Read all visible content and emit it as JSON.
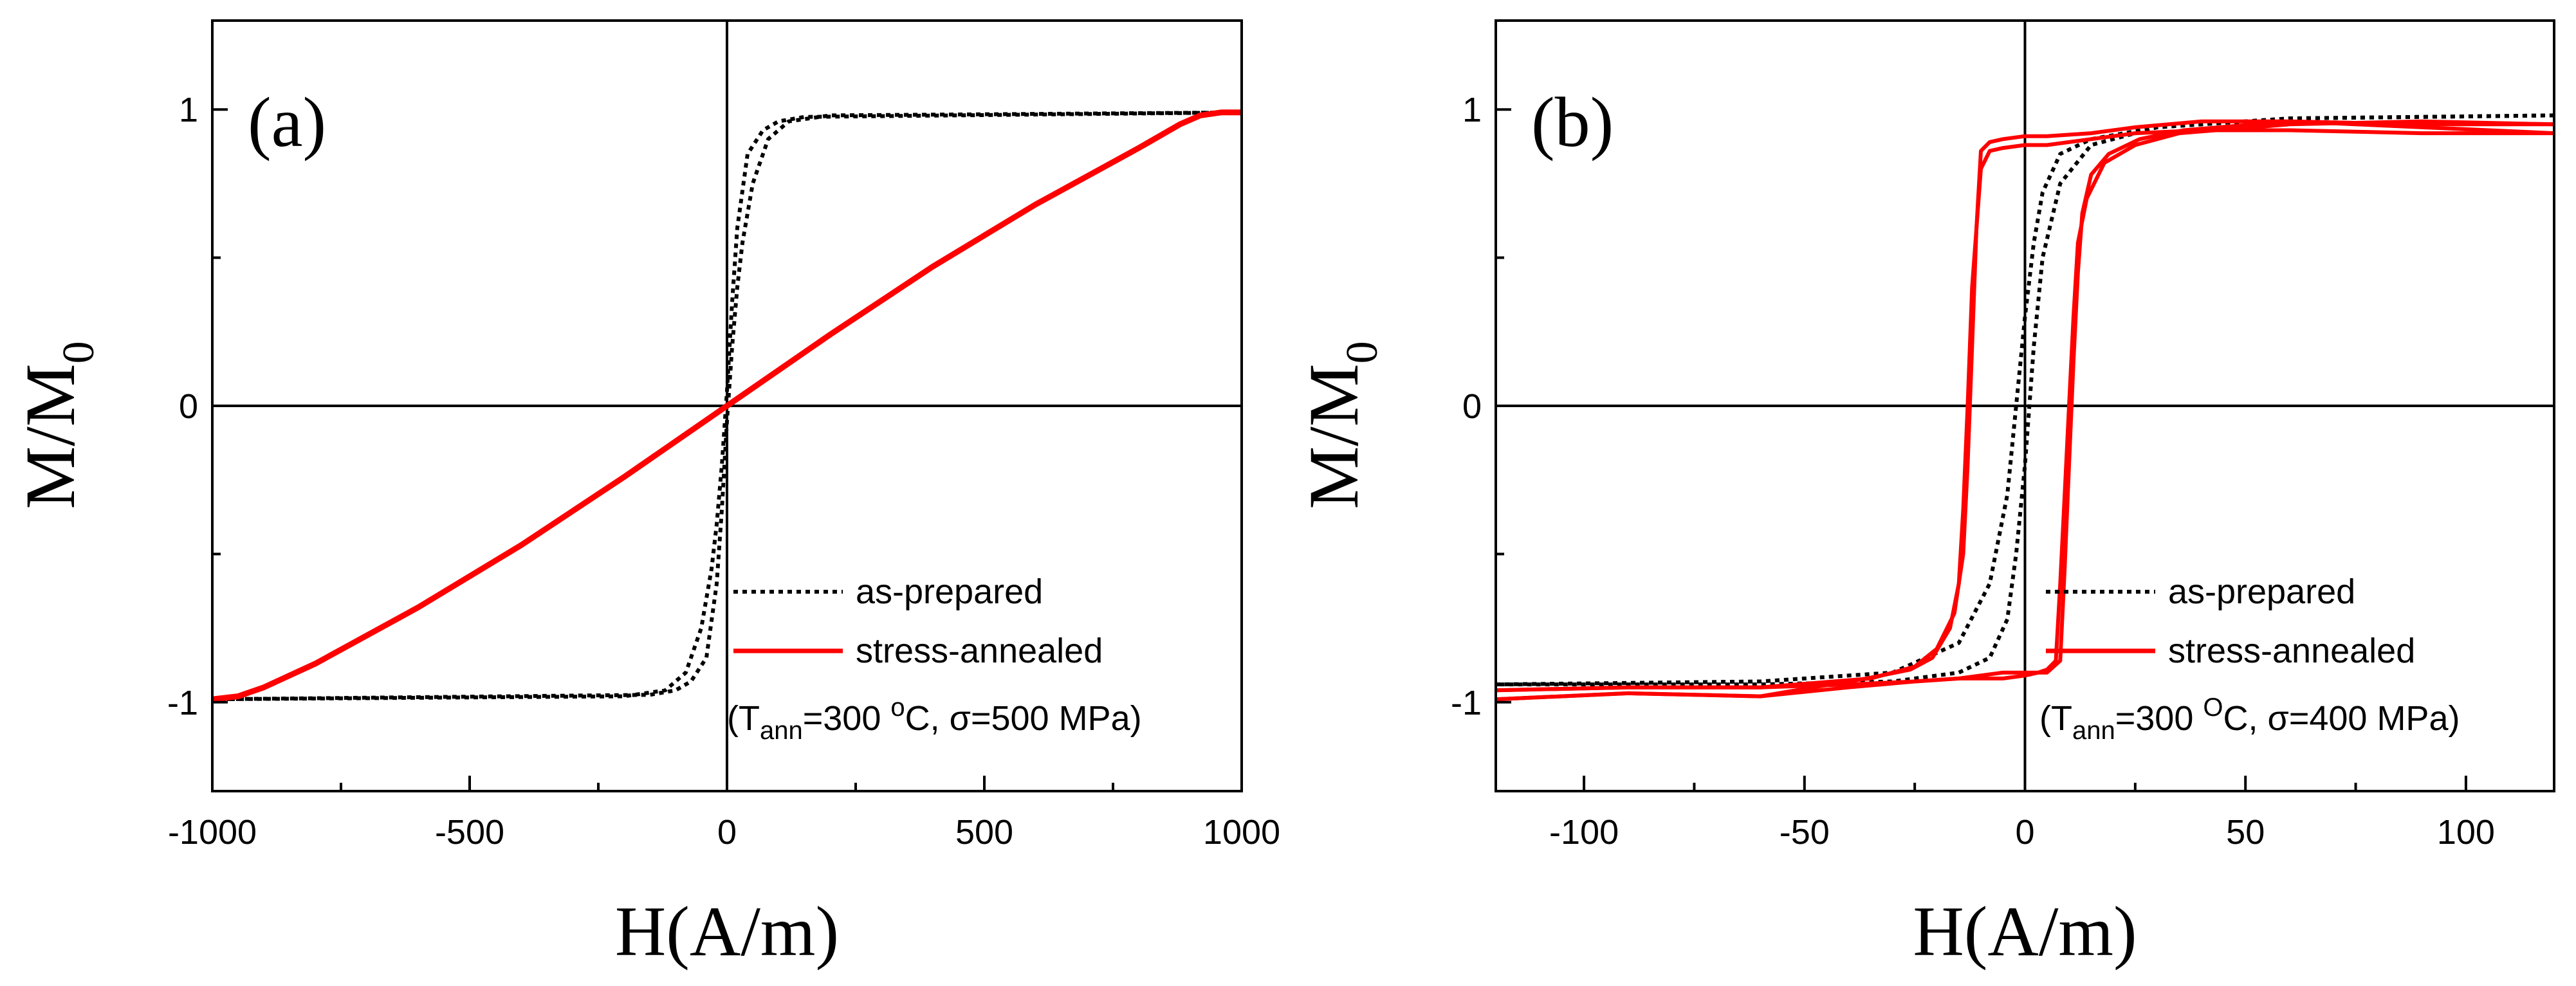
{
  "chart_data": [
    {
      "type": "line",
      "panel_label": "(a)",
      "xlabel": "H(A/m)",
      "ylabel": {
        "main": "M/M",
        "sub": "0"
      },
      "xlim": [
        -1000,
        1000
      ],
      "ylim": [
        -1.3,
        1.3
      ],
      "xticks": [
        -1000,
        -500,
        0,
        500,
        1000
      ],
      "xtick_labels": [
        "-1000",
        "-500",
        "0",
        "500",
        "1000"
      ],
      "yticks": [
        -1,
        0,
        1
      ],
      "ytick_labels": [
        "-1",
        "0",
        "1"
      ],
      "xminor": [
        -750,
        -250,
        250,
        750
      ],
      "yminor": [
        -0.5,
        0.5
      ],
      "zero_lines": true,
      "legend_position": "bottom-right",
      "annotation": {
        "open": "(T",
        "sub": "ann",
        "mid": "=300 ",
        "sup": "o",
        "close": "C, σ=500 MPa)"
      },
      "series": [
        {
          "name": "as-prepared",
          "style": "dotted",
          "color": "#000000",
          "branches": [
            {
              "x": [
                -1000,
                -200,
                -120,
                -80,
                -50,
                -30,
                -20,
                -10,
                0,
                10,
                20,
                40,
                70,
                100,
                150,
                1000
              ],
              "y": [
                -0.99,
                -0.98,
                -0.96,
                -0.9,
                -0.75,
                -0.55,
                -0.4,
                -0.2,
                0.05,
                0.35,
                0.6,
                0.85,
                0.93,
                0.96,
                0.975,
                0.99
              ]
            },
            {
              "x": [
                1000,
                200,
                120,
                80,
                50,
                30,
                20,
                10,
                0,
                -10,
                -20,
                -40,
                -70,
                -100,
                -150,
                -1000
              ],
              "y": [
                0.99,
                0.98,
                0.96,
                0.9,
                0.75,
                0.55,
                0.4,
                0.2,
                -0.05,
                -0.35,
                -0.6,
                -0.85,
                -0.93,
                -0.96,
                -0.975,
                -0.99
              ]
            }
          ]
        },
        {
          "name": "stress-annealed",
          "style": "solid",
          "color": "#ff0000",
          "branches": [
            {
              "x": [
                -1000,
                -950,
                -900,
                -800,
                -600,
                -400,
                -200,
                0,
                200,
                400,
                600,
                800,
                880,
                920,
                960,
                1000
              ],
              "y": [
                -0.99,
                -0.98,
                -0.95,
                -0.87,
                -0.68,
                -0.47,
                -0.24,
                0.0,
                0.24,
                0.47,
                0.68,
                0.87,
                0.95,
                0.98,
                0.99,
                0.99
              ]
            }
          ]
        }
      ]
    },
    {
      "type": "line",
      "panel_label": "(b)",
      "xlabel": "H(A/m)",
      "ylabel": {
        "main": "M/M",
        "sub": "0"
      },
      "xlim": [
        -120,
        120
      ],
      "ylim": [
        -1.3,
        1.3
      ],
      "xticks": [
        -100,
        -50,
        0,
        50,
        100
      ],
      "xtick_labels": [
        "-100",
        "-50",
        "0",
        "50",
        "100"
      ],
      "yticks": [
        -1,
        0,
        1
      ],
      "ytick_labels": [
        "-1",
        "0",
        "1"
      ],
      "xminor": [
        -75,
        -25,
        25,
        75
      ],
      "yminor": [
        -0.5,
        0.5
      ],
      "zero_lines": true,
      "legend_position": "bottom-right",
      "annotation": {
        "open": "(T",
        "sub": "ann",
        "mid": "=300 ",
        "sup": "O",
        "close": "C, σ=400 MPa)"
      },
      "series": [
        {
          "name": "as-prepared",
          "style": "dotted",
          "color": "#000000",
          "branches": [
            {
              "x": [
                -120,
                -60,
                -30,
                -15,
                -8,
                -4,
                -2,
                0,
                2,
                4,
                8,
                15,
                30,
                60,
                120
              ],
              "y": [
                -0.94,
                -0.93,
                -0.9,
                -0.8,
                -0.6,
                -0.3,
                0.0,
                0.3,
                0.55,
                0.72,
                0.85,
                0.9,
                0.94,
                0.97,
                0.98
              ]
            },
            {
              "x": [
                120,
                60,
                30,
                15,
                8,
                4,
                2,
                0,
                -2,
                -4,
                -8,
                -15,
                -30,
                -60,
                -120
              ],
              "y": [
                0.98,
                0.97,
                0.94,
                0.88,
                0.75,
                0.5,
                0.2,
                -0.2,
                -0.5,
                -0.72,
                -0.85,
                -0.9,
                -0.93,
                -0.94,
                -0.94
              ]
            }
          ]
        },
        {
          "name": "stress-annealed",
          "style": "solid",
          "color": "#ff0000",
          "branches": [
            {
              "x": [
                120,
                90,
                60,
                40,
                25,
                15,
                5,
                0,
                -5,
                -8,
                -10,
                -11,
                -12,
                -13,
                -14,
                -16,
                -20,
                -25,
                -35,
                -60,
                -90,
                -120
              ],
              "y": [
                0.95,
                0.95,
                0.96,
                0.96,
                0.94,
                0.92,
                0.91,
                0.91,
                0.9,
                0.89,
                0.86,
                0.6,
                0.2,
                -0.2,
                -0.5,
                -0.7,
                -0.82,
                -0.88,
                -0.92,
                -0.95,
                -0.95,
                -0.96
              ]
            },
            {
              "x": [
                -120,
                -90,
                -60,
                -40,
                -25,
                -15,
                -5,
                0,
                3,
                5,
                7,
                8,
                9,
                10,
                11,
                12,
                14,
                18,
                25,
                35,
                60,
                90,
                120
              ],
              "y": [
                -0.96,
                -0.95,
                -0.95,
                -0.94,
                -0.93,
                -0.92,
                -0.9,
                -0.9,
                -0.9,
                -0.89,
                -0.86,
                -0.6,
                -0.3,
                0.0,
                0.3,
                0.55,
                0.7,
                0.82,
                0.88,
                0.92,
                0.95,
                0.96,
                0.95
              ]
            },
            {
              "x": [
                120,
                90,
                60,
                40,
                25,
                15,
                5,
                0,
                -5,
                -8,
                -10,
                -12,
                -13,
                -14,
                -15,
                -17,
                -21,
                -26,
                -36,
                -60,
                -90,
                -120
              ],
              "y": [
                0.92,
                0.92,
                0.93,
                0.93,
                0.92,
                0.9,
                0.88,
                0.88,
                0.87,
                0.86,
                0.8,
                0.4,
                0.0,
                -0.35,
                -0.6,
                -0.75,
                -0.85,
                -0.89,
                -0.92,
                -0.98,
                -0.97,
                -0.99
              ]
            },
            {
              "x": [
                -120,
                -90,
                -60,
                -40,
                -25,
                -15,
                -5,
                0,
                3,
                5,
                8,
                9,
                10,
                11,
                12,
                13,
                15,
                19,
                26,
                36,
                60,
                90,
                120
              ],
              "y": [
                -0.99,
                -0.97,
                -0.98,
                -0.95,
                -0.93,
                -0.92,
                -0.92,
                -0.91,
                -0.9,
                -0.9,
                -0.86,
                -0.55,
                -0.2,
                0.15,
                0.45,
                0.65,
                0.78,
                0.85,
                0.9,
                0.93,
                0.96,
                0.94,
                0.92
              ]
            }
          ]
        }
      ]
    }
  ]
}
